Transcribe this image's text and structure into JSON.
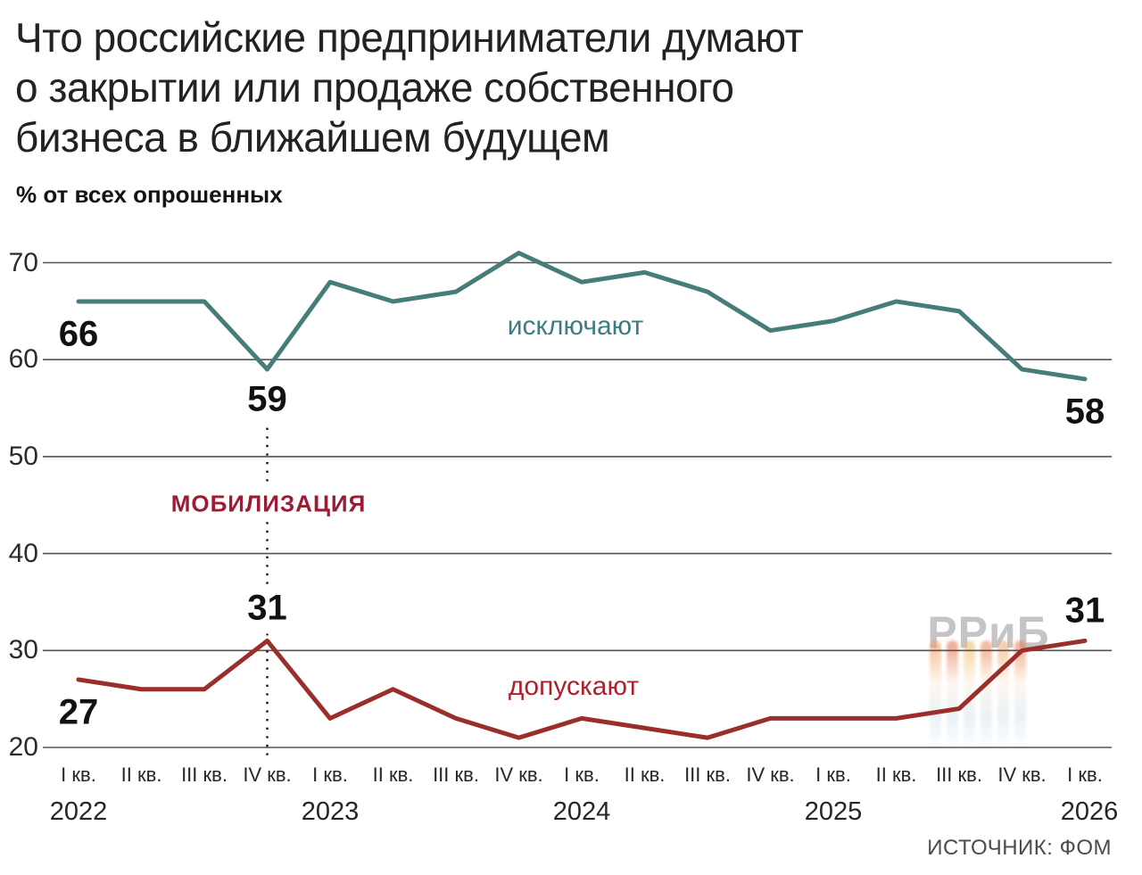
{
  "chart_data": {
    "type": "line",
    "title": "Что российские предприниматели думают\nо закрытии или продаже собственного\nбизнеса в ближайшем будущем",
    "subtitle": "% от всех опрошенных",
    "xlabel": "",
    "ylabel": "% от всех опрошенных",
    "ylim": [
      20,
      73
    ],
    "y_ticks": [
      20,
      30,
      40,
      50,
      60,
      70
    ],
    "grid": true,
    "legend_position": "inline-labels",
    "x_categories": [
      "I кв.",
      "II кв.",
      "III кв.",
      "IV кв.",
      "I кв.",
      "II кв.",
      "III кв.",
      "IV кв.",
      "I кв.",
      "II кв.",
      "III кв.",
      "IV кв.",
      "I кв.",
      "II кв.",
      "III кв.",
      "IV кв.",
      "I кв."
    ],
    "years": [
      {
        "label": "2022",
        "index": 0
      },
      {
        "label": "2023",
        "index": 4
      },
      {
        "label": "2024",
        "index": 8
      },
      {
        "label": "2025",
        "index": 12
      },
      {
        "label": "2026",
        "index": 16
      }
    ],
    "series": [
      {
        "name": "исключают",
        "color": "#467d79",
        "label_color": "#3e7c83",
        "values": [
          66,
          66,
          66,
          59,
          68,
          66,
          67,
          71,
          68,
          69,
          67,
          63,
          64,
          66,
          65,
          59,
          58
        ]
      },
      {
        "name": "допускают",
        "color": "#9a2e2a",
        "label_color": "#ad202d",
        "values": [
          27,
          26,
          26,
          31,
          23,
          26,
          23,
          21,
          23,
          22,
          21,
          23,
          23,
          23,
          24,
          30,
          31
        ]
      }
    ],
    "labeled_points": [
      {
        "series": 0,
        "index": 0
      },
      {
        "series": 0,
        "index": 3
      },
      {
        "series": 0,
        "index": 16
      },
      {
        "series": 1,
        "index": 0
      },
      {
        "series": 1,
        "index": 3
      },
      {
        "series": 1,
        "index": 16
      }
    ],
    "event_marker": {
      "label": "МОБИЛИЗАЦИЯ",
      "index": 3,
      "color": "#9b1c33"
    }
  },
  "watermark": {
    "text": "РРиБ"
  },
  "footer": {
    "source": "ИСТОЧНИК: ФОМ"
  }
}
